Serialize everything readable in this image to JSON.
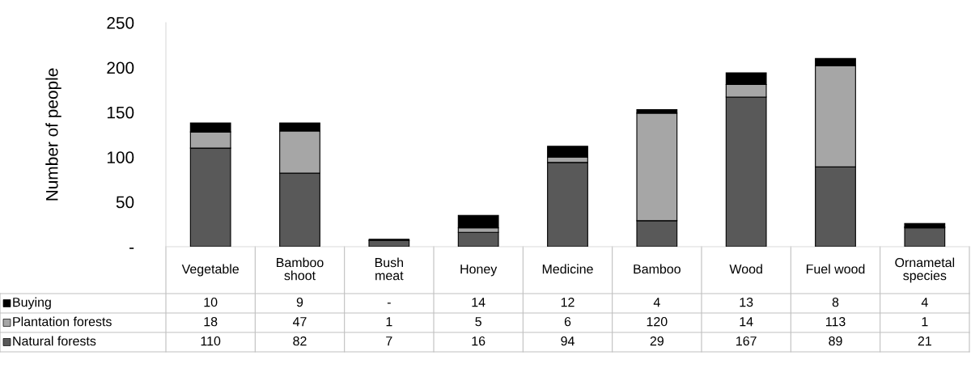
{
  "chart_data": {
    "type": "bar",
    "stacked": true,
    "ylabel": "Number of people",
    "categories": [
      "Vegetable",
      "Bamboo\nshoot",
      "Bush\nmeat",
      "Honey",
      "Medicine",
      "Bamboo",
      "Wood",
      "Fuel wood",
      "Ornametal\nspecies"
    ],
    "series": [
      {
        "name": "Natural forests",
        "color": "#595959",
        "values": [
          110,
          82,
          7,
          16,
          94,
          29,
          167,
          89,
          21
        ],
        "value_labels": [
          "110",
          "82",
          "7",
          "16",
          "94",
          "29",
          "167",
          "89",
          "21"
        ]
      },
      {
        "name": "Plantation forests",
        "color": "#a6a6a6",
        "values": [
          18,
          47,
          1,
          5,
          6,
          120,
          14,
          113,
          1
        ],
        "value_labels": [
          "18",
          "47",
          "1",
          "5",
          "6",
          "120",
          "14",
          "113",
          "1"
        ]
      },
      {
        "name": "Buying",
        "color": "#000000",
        "values": [
          10,
          9,
          0,
          14,
          12,
          4,
          13,
          8,
          4
        ],
        "value_labels": [
          "10",
          "9",
          "-",
          "14",
          "12",
          "4",
          "13",
          "8",
          "4"
        ]
      }
    ],
    "ylim": [
      0,
      250
    ],
    "yticks": [
      {
        "value": 0,
        "label": "-"
      },
      50,
      100,
      150,
      200,
      250
    ],
    "grid": false,
    "legend": "bottom left"
  }
}
